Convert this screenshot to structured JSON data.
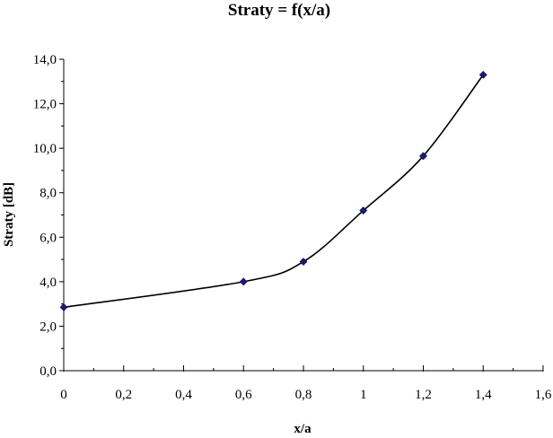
{
  "chart_data": {
    "type": "line",
    "title": "Straty = f(x/a)",
    "xlabel": "x/a",
    "ylabel": "Straty  [dB]",
    "xlim": [
      0,
      1.6
    ],
    "ylim": [
      0,
      14
    ],
    "x_ticks": [
      "0",
      "0,2",
      "0,4",
      "0,6",
      "0,8",
      "1",
      "1,2",
      "1,4",
      "1,6"
    ],
    "y_ticks": [
      "0,0",
      "2,0",
      "4,0",
      "6,0",
      "8,0",
      "10,0",
      "12,0",
      "14,0"
    ],
    "x_tick_values": [
      0,
      0.2,
      0.4,
      0.6,
      0.8,
      1.0,
      1.2,
      1.4,
      1.6
    ],
    "y_tick_values": [
      0,
      2,
      4,
      6,
      8,
      10,
      12,
      14
    ],
    "grid": false,
    "legend": "none",
    "series": [
      {
        "x": [
          0,
          0.6,
          0.8,
          1.0,
          1.2,
          1.4
        ],
        "y": [
          2.85,
          4.0,
          4.9,
          7.2,
          9.65,
          13.3
        ],
        "color": "#1a1a7a"
      }
    ]
  }
}
